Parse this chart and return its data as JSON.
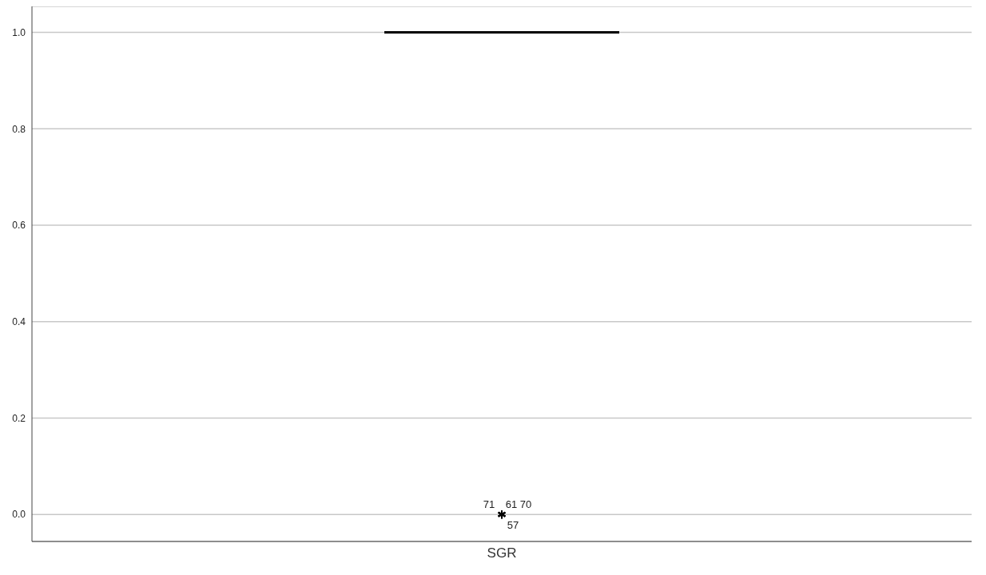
{
  "chart_data": {
    "type": "box",
    "categories": [
      "SGR"
    ],
    "boxes": [
      {
        "low": 1,
        "q1": 1,
        "median": 1,
        "q3": 1,
        "high": 1,
        "outliers": [
          0,
          0,
          0,
          0
        ]
      }
    ],
    "ylim": [
      -0.056,
      1.054
    ],
    "yticks": [
      {
        "value": 0,
        "label": "0.0"
      },
      {
        "value": 0.2,
        "label": "0.2"
      },
      {
        "value": 0.4,
        "label": "0.4"
      },
      {
        "value": 0.6,
        "label": "0.6"
      },
      {
        "value": 0.8,
        "label": "0.8"
      },
      {
        "value": 1,
        "label": "1.0"
      }
    ],
    "grid": "y",
    "marker": "star",
    "annotations": [
      "71",
      "61",
      "70",
      "57"
    ]
  }
}
